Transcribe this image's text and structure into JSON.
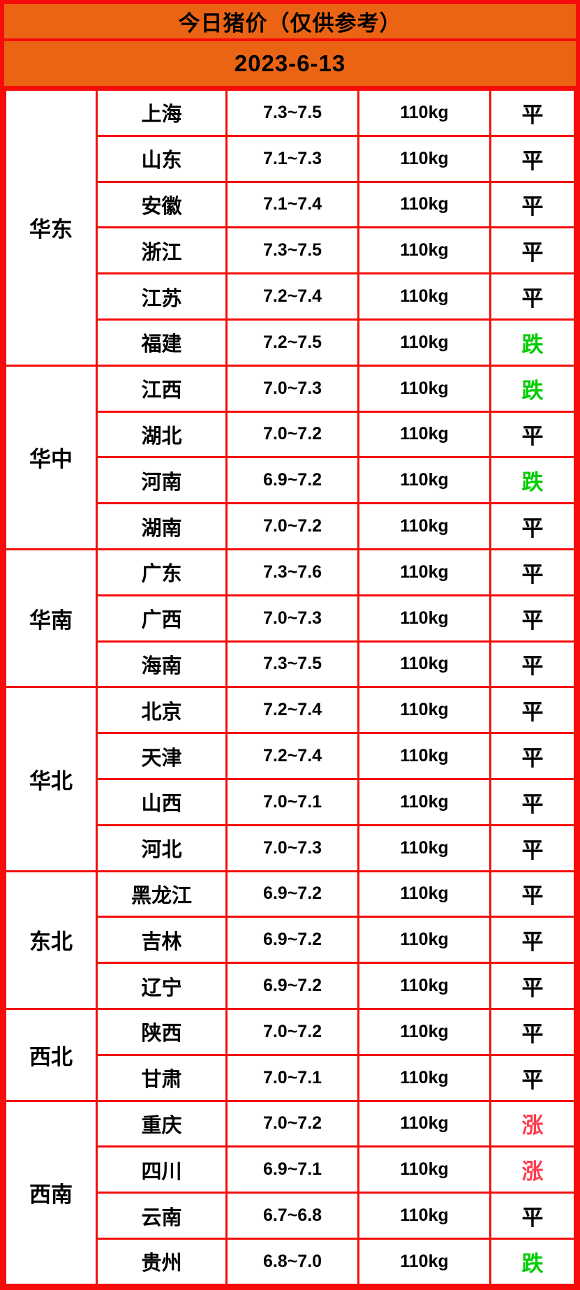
{
  "header": {
    "title": "今日猪价（仅供参考）",
    "date": "2023-6-13"
  },
  "colors": {
    "header_background": "#eb6414",
    "grid_border": "#f60d0b",
    "trend_flat": "#000000",
    "trend_down": "#00cc00",
    "trend_up": "#ff3c4f"
  },
  "chart_data": {
    "type": "table",
    "title": "今日猪价（仅供参考）",
    "date": "2023-6-13",
    "columns": [
      "region",
      "province",
      "price_range",
      "weight",
      "trend"
    ],
    "weight_unit": "110kg",
    "trend_legend": {
      "平": "flat",
      "跌": "down",
      "涨": "up"
    },
    "regions": [
      {
        "name": "华东",
        "rows": [
          {
            "province": "上海",
            "price": "7.3~7.5",
            "weight": "110kg",
            "status": "平",
            "trend": "flat"
          },
          {
            "province": "山东",
            "price": "7.1~7.3",
            "weight": "110kg",
            "status": "平",
            "trend": "flat"
          },
          {
            "province": "安徽",
            "price": "7.1~7.4",
            "weight": "110kg",
            "status": "平",
            "trend": "flat"
          },
          {
            "province": "浙江",
            "price": "7.3~7.5",
            "weight": "110kg",
            "status": "平",
            "trend": "flat"
          },
          {
            "province": "江苏",
            "price": "7.2~7.4",
            "weight": "110kg",
            "status": "平",
            "trend": "flat"
          },
          {
            "province": "福建",
            "price": "7.2~7.5",
            "weight": "110kg",
            "status": "跌",
            "trend": "down"
          }
        ]
      },
      {
        "name": "华中",
        "rows": [
          {
            "province": "江西",
            "price": "7.0~7.3",
            "weight": "110kg",
            "status": "跌",
            "trend": "down"
          },
          {
            "province": "湖北",
            "price": "7.0~7.2",
            "weight": "110kg",
            "status": "平",
            "trend": "flat"
          },
          {
            "province": "河南",
            "price": "6.9~7.2",
            "weight": "110kg",
            "status": "跌",
            "trend": "down"
          },
          {
            "province": "湖南",
            "price": "7.0~7.2",
            "weight": "110kg",
            "status": "平",
            "trend": "flat"
          }
        ]
      },
      {
        "name": "华南",
        "rows": [
          {
            "province": "广东",
            "price": "7.3~7.6",
            "weight": "110kg",
            "status": "平",
            "trend": "flat"
          },
          {
            "province": "广西",
            "price": "7.0~7.3",
            "weight": "110kg",
            "status": "平",
            "trend": "flat"
          },
          {
            "province": "海南",
            "price": "7.3~7.5",
            "weight": "110kg",
            "status": "平",
            "trend": "flat"
          }
        ]
      },
      {
        "name": "华北",
        "rows": [
          {
            "province": "北京",
            "price": "7.2~7.4",
            "weight": "110kg",
            "status": "平",
            "trend": "flat"
          },
          {
            "province": "天津",
            "price": "7.2~7.4",
            "weight": "110kg",
            "status": "平",
            "trend": "flat"
          },
          {
            "province": "山西",
            "price": "7.0~7.1",
            "weight": "110kg",
            "status": "平",
            "trend": "flat"
          },
          {
            "province": "河北",
            "price": "7.0~7.3",
            "weight": "110kg",
            "status": "平",
            "trend": "flat"
          }
        ]
      },
      {
        "name": "东北",
        "rows": [
          {
            "province": "黑龙江",
            "price": "6.9~7.2",
            "weight": "110kg",
            "status": "平",
            "trend": "flat"
          },
          {
            "province": "吉林",
            "price": "6.9~7.2",
            "weight": "110kg",
            "status": "平",
            "trend": "flat"
          },
          {
            "province": "辽宁",
            "price": "6.9~7.2",
            "weight": "110kg",
            "status": "平",
            "trend": "flat"
          }
        ]
      },
      {
        "name": "西北",
        "rows": [
          {
            "province": "陕西",
            "price": "7.0~7.2",
            "weight": "110kg",
            "status": "平",
            "trend": "flat"
          },
          {
            "province": "甘肃",
            "price": "7.0~7.1",
            "weight": "110kg",
            "status": "平",
            "trend": "flat"
          }
        ]
      },
      {
        "name": "西南",
        "rows": [
          {
            "province": "重庆",
            "price": "7.0~7.2",
            "weight": "110kg",
            "status": "涨",
            "trend": "up"
          },
          {
            "province": "四川",
            "price": "6.9~7.1",
            "weight": "110kg",
            "status": "涨",
            "trend": "up"
          },
          {
            "province": "云南",
            "price": "6.7~6.8",
            "weight": "110kg",
            "status": "平",
            "trend": "flat"
          },
          {
            "province": "贵州",
            "price": "6.8~7.0",
            "weight": "110kg",
            "status": "跌",
            "trend": "down"
          }
        ]
      }
    ]
  }
}
